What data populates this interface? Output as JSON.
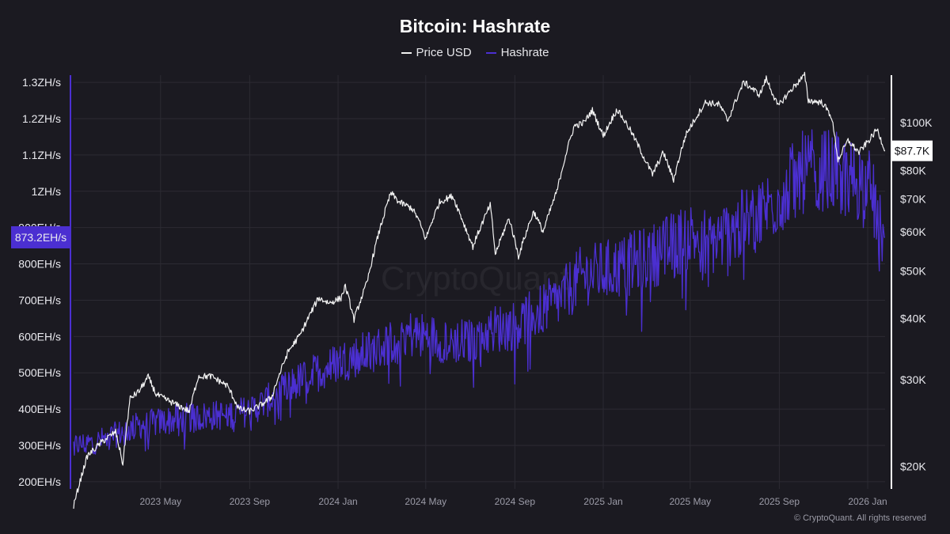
{
  "chart_data": {
    "type": "line",
    "title": "Bitcoin: Hashrate",
    "legend": {
      "placement": "top-center",
      "items": [
        "Price USD",
        "Hashrate"
      ]
    },
    "colors": {
      "price": "#f2f2f2",
      "hashrate": "#4b2fd1",
      "background": "#1b1a21",
      "grid": "#2c2b33",
      "price_badge_bg": "#ffffff",
      "hashrate_badge_bg": "#4b2fd1"
    },
    "x_range": [
      "2023-01-01",
      "2026-01-25"
    ],
    "x_ticks": [
      {
        "date": "2023-05-01",
        "label": "2023 May"
      },
      {
        "date": "2023-09-01",
        "label": "2023 Sep"
      },
      {
        "date": "2024-01-01",
        "label": "2024 Jan"
      },
      {
        "date": "2024-05-01",
        "label": "2024 May"
      },
      {
        "date": "2024-09-01",
        "label": "2024 Sep"
      },
      {
        "date": "2025-01-01",
        "label": "2025 Jan"
      },
      {
        "date": "2025-05-01",
        "label": "2025 May"
      },
      {
        "date": "2025-09-01",
        "label": "2025 Sep"
      },
      {
        "date": "2026-01-01",
        "label": "2026 Jan"
      }
    ],
    "left_axis": {
      "unit": "EH/s",
      "scale": "linear",
      "range": [
        180,
        1320
      ],
      "ticks": [
        {
          "value": 200,
          "label": "200EH/s"
        },
        {
          "value": 300,
          "label": "300EH/s"
        },
        {
          "value": 400,
          "label": "400EH/s"
        },
        {
          "value": 500,
          "label": "500EH/s"
        },
        {
          "value": 600,
          "label": "600EH/s"
        },
        {
          "value": 700,
          "label": "700EH/s"
        },
        {
          "value": 800,
          "label": "800EH/s"
        },
        {
          "value": 900,
          "label": "900EH/s"
        },
        {
          "value": 1000,
          "label": "1ZH/s"
        },
        {
          "value": 1100,
          "label": "1.1ZH/s"
        },
        {
          "value": 1200,
          "label": "1.2ZH/s"
        },
        {
          "value": 1300,
          "label": "1.3ZH/s"
        }
      ],
      "current_value": 873.2,
      "current_label": "873.2EH/s"
    },
    "right_axis": {
      "unit": "USD",
      "scale": "log",
      "range": [
        18000,
        125000
      ],
      "ticks": [
        {
          "value": 20000,
          "label": "$20K"
        },
        {
          "value": 30000,
          "label": "$30K"
        },
        {
          "value": 40000,
          "label": "$40K"
        },
        {
          "value": 50000,
          "label": "$50K"
        },
        {
          "value": 60000,
          "label": "$60K"
        },
        {
          "value": 70000,
          "label": "$70K"
        },
        {
          "value": 80000,
          "label": "$80K"
        },
        {
          "value": 100000,
          "label": "$100K"
        }
      ],
      "current_value": 87700,
      "current_label": "$87.7K"
    },
    "grid": true,
    "series": [
      {
        "name": "Price USD",
        "axis": "right",
        "points": [
          [
            "2023-01-01",
            16600
          ],
          [
            "2023-01-20",
            21000
          ],
          [
            "2023-02-10",
            22500
          ],
          [
            "2023-02-28",
            23500
          ],
          [
            "2023-03-10",
            20200
          ],
          [
            "2023-03-20",
            27500
          ],
          [
            "2023-04-01",
            28400
          ],
          [
            "2023-04-14",
            30400
          ],
          [
            "2023-04-25",
            28000
          ],
          [
            "2023-05-10",
            27300
          ],
          [
            "2023-05-25",
            26600
          ],
          [
            "2023-06-10",
            25900
          ],
          [
            "2023-06-22",
            30500
          ],
          [
            "2023-07-10",
            30500
          ],
          [
            "2023-07-20",
            29900
          ],
          [
            "2023-08-01",
            29200
          ],
          [
            "2023-08-17",
            26200
          ],
          [
            "2023-09-01",
            25900
          ],
          [
            "2023-09-15",
            26600
          ],
          [
            "2023-10-01",
            27600
          ],
          [
            "2023-10-24",
            34200
          ],
          [
            "2023-11-10",
            37100
          ],
          [
            "2023-12-05",
            44000
          ],
          [
            "2023-12-20",
            43000
          ],
          [
            "2024-01-05",
            44000
          ],
          [
            "2024-01-11",
            46500
          ],
          [
            "2024-01-23",
            39800
          ],
          [
            "2024-02-10",
            47300
          ],
          [
            "2024-02-28",
            61000
          ],
          [
            "2024-03-14",
            72000
          ],
          [
            "2024-03-25",
            69000
          ],
          [
            "2024-04-12",
            67000
          ],
          [
            "2024-04-20",
            64000
          ],
          [
            "2024-05-01",
            58000
          ],
          [
            "2024-05-20",
            69000
          ],
          [
            "2024-06-07",
            71000
          ],
          [
            "2024-06-25",
            61000
          ],
          [
            "2024-07-05",
            56000
          ],
          [
            "2024-07-29",
            68000
          ],
          [
            "2024-08-05",
            54000
          ],
          [
            "2024-08-24",
            64000
          ],
          [
            "2024-09-06",
            53500
          ],
          [
            "2024-09-27",
            66000
          ],
          [
            "2024-10-10",
            60000
          ],
          [
            "2024-10-29",
            72500
          ],
          [
            "2024-11-12",
            88000
          ],
          [
            "2024-11-22",
            98500
          ],
          [
            "2024-12-05",
            100000
          ],
          [
            "2024-12-17",
            106000
          ],
          [
            "2025-01-01",
            94000
          ],
          [
            "2025-01-20",
            106500
          ],
          [
            "2025-02-05",
            98000
          ],
          [
            "2025-02-27",
            84500
          ],
          [
            "2025-03-10",
            78500
          ],
          [
            "2025-03-25",
            87000
          ],
          [
            "2025-04-08",
            76500
          ],
          [
            "2025-04-25",
            94500
          ],
          [
            "2025-05-22",
            110000
          ],
          [
            "2025-06-10",
            109000
          ],
          [
            "2025-06-22",
            101000
          ],
          [
            "2025-07-14",
            121000
          ],
          [
            "2025-08-05",
            114000
          ],
          [
            "2025-08-14",
            123000
          ],
          [
            "2025-08-30",
            108000
          ],
          [
            "2025-09-18",
            117000
          ],
          [
            "2025-10-06",
            125000
          ],
          [
            "2025-10-11",
            111000
          ],
          [
            "2025-10-30",
            110000
          ],
          [
            "2025-11-12",
            103000
          ],
          [
            "2025-11-21",
            84000
          ],
          [
            "2025-12-05",
            92000
          ],
          [
            "2025-12-20",
            87000
          ],
          [
            "2026-01-05",
            93000
          ],
          [
            "2026-01-14",
            97000
          ],
          [
            "2026-01-25",
            87700
          ]
        ]
      },
      {
        "name": "Hashrate",
        "axis": "left",
        "points": [
          [
            "2023-01-01",
            300
          ],
          [
            "2023-02-01",
            310
          ],
          [
            "2023-03-01",
            330
          ],
          [
            "2023-04-01",
            355
          ],
          [
            "2023-05-01",
            365
          ],
          [
            "2023-06-01",
            375
          ],
          [
            "2023-07-01",
            380
          ],
          [
            "2023-08-01",
            385
          ],
          [
            "2023-09-01",
            395
          ],
          [
            "2023-10-01",
            430
          ],
          [
            "2023-11-01",
            470
          ],
          [
            "2023-12-01",
            500
          ],
          [
            "2024-01-01",
            530
          ],
          [
            "2024-02-01",
            550
          ],
          [
            "2024-03-01",
            570
          ],
          [
            "2024-04-01",
            610
          ],
          [
            "2024-05-01",
            600
          ],
          [
            "2024-06-01",
            590
          ],
          [
            "2024-07-01",
            585
          ],
          [
            "2024-08-01",
            620
          ],
          [
            "2024-09-01",
            630
          ],
          [
            "2024-10-01",
            665
          ],
          [
            "2024-11-01",
            700
          ],
          [
            "2024-12-01",
            765
          ],
          [
            "2025-01-01",
            780
          ],
          [
            "2025-02-01",
            795
          ],
          [
            "2025-03-01",
            815
          ],
          [
            "2025-04-01",
            845
          ],
          [
            "2025-05-01",
            880
          ],
          [
            "2025-06-01",
            860
          ],
          [
            "2025-07-01",
            895
          ],
          [
            "2025-08-01",
            930
          ],
          [
            "2025-09-01",
            985
          ],
          [
            "2025-10-01",
            1050
          ],
          [
            "2025-11-01",
            1060
          ],
          [
            "2025-12-01",
            1040
          ],
          [
            "2026-01-01",
            1020
          ],
          [
            "2026-01-25",
            873.2
          ]
        ]
      }
    ]
  },
  "footer": {
    "copyright": "© CryptoQuant. All rights reserved",
    "watermark": "CryptoQuant"
  }
}
